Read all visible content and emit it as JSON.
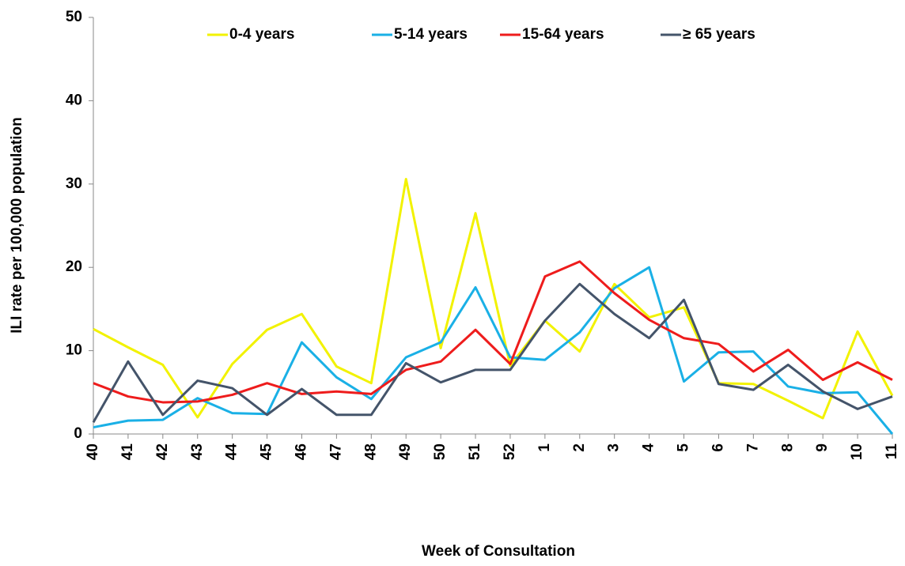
{
  "chart_data": {
    "type": "line",
    "x_label": "Week of Consultation",
    "y_label": "ILI rate per 100,000 population",
    "categories": [
      "40",
      "41",
      "42",
      "43",
      "44",
      "45",
      "46",
      "47",
      "48",
      "49",
      "50",
      "51",
      "52",
      "1",
      "2",
      "3",
      "4",
      "5",
      "6",
      "7",
      "8",
      "9",
      "10",
      "11"
    ],
    "series": [
      {
        "name": "0-4 years",
        "color": "#f2f200",
        "values": [
          12.6,
          10.4,
          8.3,
          2.0,
          8.4,
          12.5,
          14.4,
          8.1,
          6.1,
          30.6,
          10.3,
          26.5,
          8.2,
          13.6,
          9.9,
          18.0,
          14.0,
          15.2,
          6.1,
          6.0,
          4.0,
          1.9,
          12.3,
          4.6
        ]
      },
      {
        "name": "5-14 years",
        "color": "#1ab0e6",
        "values": [
          0.8,
          1.6,
          1.7,
          4.3,
          2.5,
          2.4,
          11.0,
          6.8,
          4.2,
          9.2,
          11.0,
          17.6,
          9.2,
          8.9,
          12.2,
          17.5,
          20.0,
          6.3,
          9.8,
          9.9,
          5.7,
          4.9,
          5.0,
          0.0
        ]
      },
      {
        "name": "15-64 years",
        "color": "#ee1c1c",
        "values": [
          6.1,
          4.5,
          3.8,
          3.9,
          4.7,
          6.1,
          4.8,
          5.1,
          4.8,
          7.7,
          8.7,
          12.5,
          8.4,
          18.9,
          20.7,
          16.9,
          13.7,
          11.5,
          10.8,
          7.5,
          10.1,
          6.5,
          8.6,
          6.5
        ]
      },
      {
        "name": "≥ 65 years",
        "color": "#44546a",
        "values": [
          1.4,
          8.7,
          2.3,
          6.4,
          5.5,
          2.3,
          5.4,
          2.3,
          2.3,
          8.5,
          6.2,
          7.7,
          7.7,
          13.6,
          18.0,
          14.4,
          11.5,
          16.1,
          6.0,
          5.3,
          8.3,
          5.1,
          3.0,
          4.5
        ]
      }
    ],
    "ylim": [
      0,
      50
    ],
    "yticks": [
      0,
      10,
      20,
      30,
      40,
      50
    ],
    "grid": false,
    "legend": "top"
  }
}
